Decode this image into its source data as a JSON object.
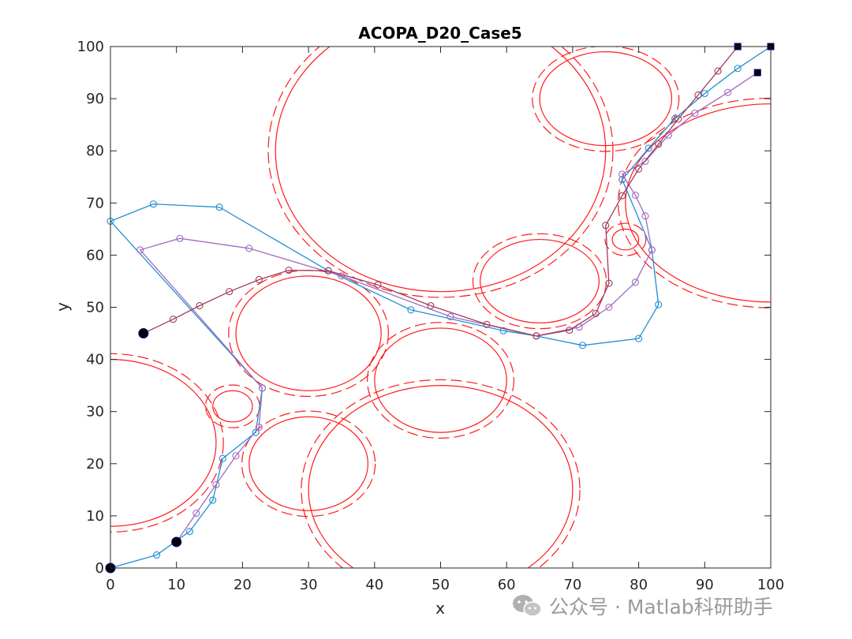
{
  "chart_data": {
    "type": "line",
    "title": "ACOPA_D20_Case5",
    "xlabel": "x",
    "ylabel": "y",
    "xlim": [
      0,
      100
    ],
    "ylim": [
      0,
      100
    ],
    "xticks": [
      0,
      10,
      20,
      30,
      40,
      50,
      60,
      70,
      80,
      90,
      100
    ],
    "yticks": [
      0,
      10,
      20,
      30,
      40,
      50,
      60,
      70,
      80,
      90,
      100
    ],
    "grid": false,
    "obstacles": [
      {
        "cx": 50,
        "cy": 80,
        "rx": 25,
        "ry": 27
      },
      {
        "cx": 75,
        "cy": 90,
        "rx": 10,
        "ry": 9
      },
      {
        "cx": 100,
        "cy": 70,
        "rx": 22,
        "ry": 19
      },
      {
        "cx": 65,
        "cy": 55,
        "rx": 9,
        "ry": 8
      },
      {
        "cx": 78,
        "cy": 63,
        "rx": 2,
        "ry": 2
      },
      {
        "cx": 30,
        "cy": 45,
        "rx": 11,
        "ry": 11
      },
      {
        "cx": 50,
        "cy": 36,
        "rx": 10,
        "ry": 10
      },
      {
        "cx": 0,
        "cy": 24,
        "rx": 16,
        "ry": 16
      },
      {
        "cx": 18.5,
        "cy": 31,
        "rx": 3,
        "ry": 3
      },
      {
        "cx": 30,
        "cy": 20,
        "rx": 9,
        "ry": 9
      },
      {
        "cx": 50,
        "cy": 15,
        "rx": 20,
        "ry": 20
      }
    ],
    "obstacle_color": "#ff1a1a",
    "series": [
      {
        "color": "#1f8fd0",
        "start": [
          0,
          0
        ],
        "end": [
          100,
          100
        ],
        "x": [
          0,
          7,
          12,
          15.5,
          17,
          22,
          23,
          0,
          6.5,
          16.5,
          33,
          45.5,
          59.5,
          64.5,
          71.5,
          80,
          83,
          82,
          77.5,
          81.5,
          85.5,
          90,
          95,
          100
        ],
        "y": [
          0,
          2.5,
          7,
          13,
          21,
          26,
          34.5,
          66.5,
          69.8,
          69.2,
          57,
          49.5,
          45.5,
          44.5,
          42.7,
          44,
          50.5,
          61,
          74.5,
          80.5,
          86.2,
          91,
          95.8,
          100
        ]
      },
      {
        "color": "#9f6bc0",
        "start": [
          10,
          5
        ],
        "end": [
          98,
          95
        ],
        "x": [
          10,
          13,
          16,
          19,
          22.5,
          23,
          4.5,
          10.5,
          21,
          35,
          51.5,
          64.5,
          71,
          75.5,
          79.5,
          82,
          81,
          79.5,
          77.5,
          81,
          84.5,
          88.5,
          93.5,
          98
        ],
        "y": [
          5,
          10.5,
          16,
          21.5,
          27,
          34.5,
          61,
          63.2,
          61.3,
          56,
          48.2,
          44.5,
          46.2,
          50,
          54.8,
          61,
          67.5,
          71.5,
          75.5,
          78,
          83,
          87.2,
          91.2,
          95
        ]
      },
      {
        "color": "#a03c5c",
        "start": [
          5,
          45
        ],
        "end": [
          95,
          100
        ],
        "x": [
          5,
          9.5,
          13.5,
          18,
          22.5,
          27,
          33,
          40.5,
          48.5,
          57,
          64.5,
          69.5,
          73.5,
          75.5,
          75,
          77.5,
          80,
          83,
          86,
          89,
          92,
          95
        ],
        "y": [
          45,
          47.7,
          50.3,
          53,
          55.3,
          57.1,
          57,
          54.3,
          50.3,
          46.7,
          44.5,
          45.6,
          48.8,
          54.6,
          65.7,
          71.4,
          76.5,
          81.3,
          86.1,
          90.7,
          95.3,
          100
        ]
      }
    ]
  },
  "watermark_text": "公众号 · Matlab科研助手"
}
